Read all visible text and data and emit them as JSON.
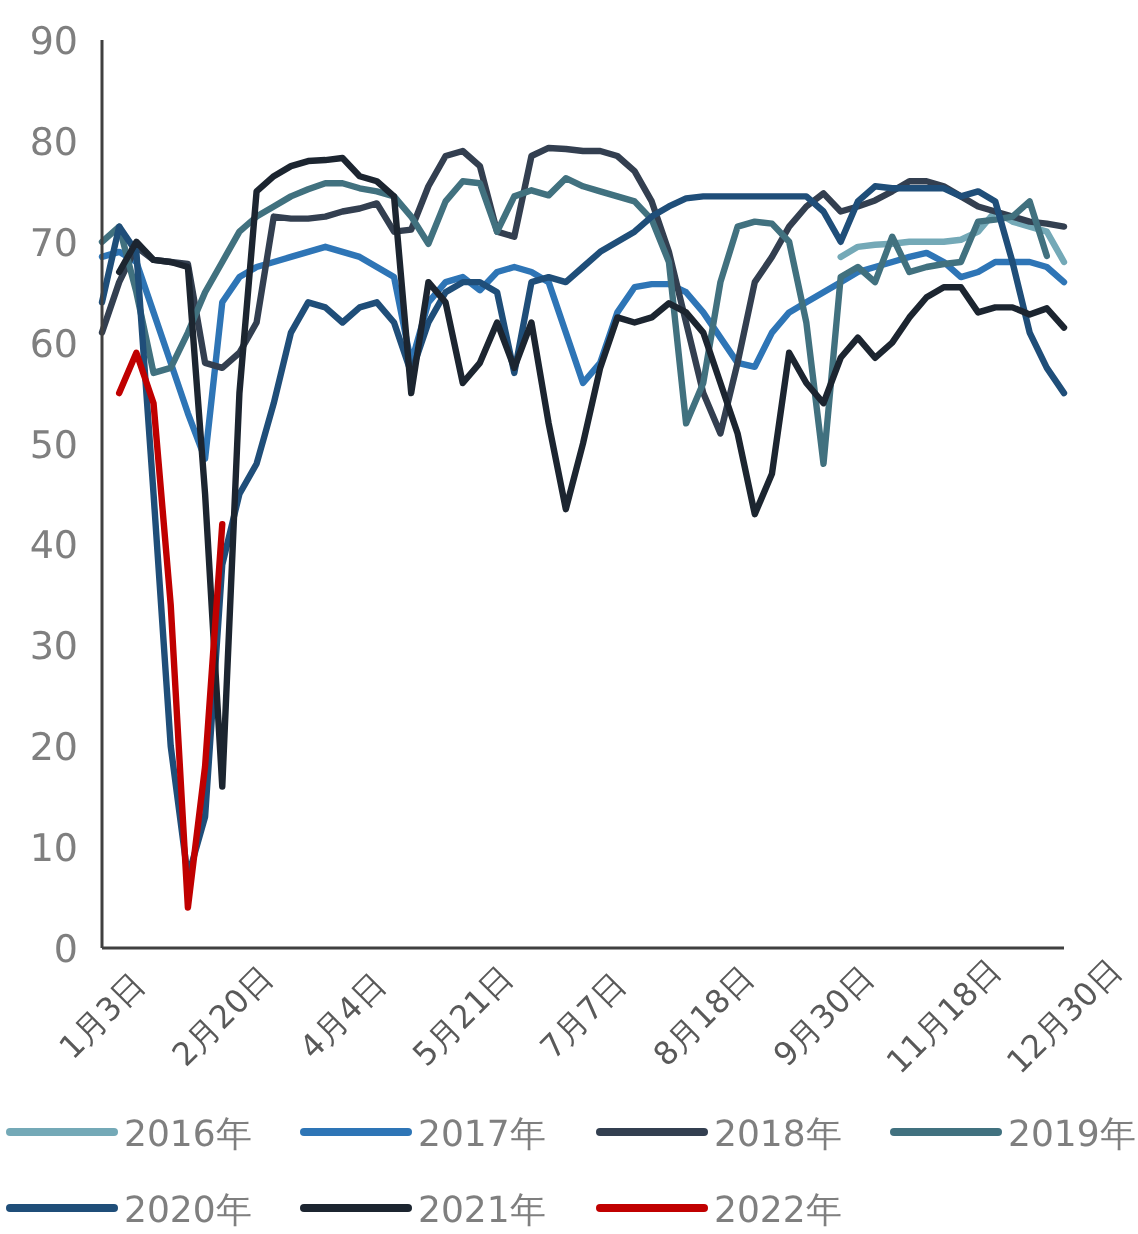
{
  "chart_data": {
    "type": "line",
    "categories": [
      "1月3日",
      null,
      null,
      null,
      null,
      null,
      null,
      "2月20日",
      null,
      null,
      null,
      null,
      null,
      null,
      "4月4日",
      null,
      null,
      null,
      null,
      null,
      null,
      "5月21日",
      null,
      null,
      null,
      null,
      null,
      null,
      "7月7日",
      null,
      null,
      null,
      null,
      null,
      null,
      "8月18日",
      null,
      null,
      null,
      null,
      null,
      null,
      "9月30日",
      null,
      null,
      null,
      null,
      null,
      null,
      "11月18日",
      null,
      null,
      null,
      null,
      null,
      null,
      "12月30日"
    ],
    "ylim": [
      0,
      90
    ],
    "yticks": [
      0,
      10,
      20,
      30,
      40,
      50,
      60,
      70,
      80,
      90
    ],
    "grid": false,
    "legend": "bottom",
    "series": [
      {
        "name": "2016年",
        "color": "#74a9b7",
        "values": [
          null,
          null,
          null,
          null,
          null,
          null,
          null,
          null,
          null,
          null,
          null,
          null,
          null,
          null,
          null,
          null,
          null,
          null,
          null,
          null,
          null,
          null,
          null,
          null,
          null,
          null,
          null,
          null,
          null,
          null,
          null,
          null,
          null,
          null,
          null,
          null,
          null,
          null,
          null,
          null,
          null,
          null,
          null,
          68.5,
          69.5,
          69.7,
          69.8,
          70,
          70,
          70,
          70.2,
          71,
          73,
          72,
          71.5,
          71,
          68
        ]
      },
      {
        "name": "2017年",
        "color": "#2e75b6",
        "values": [
          68.5,
          69,
          68,
          63,
          58,
          53,
          48.5,
          64,
          66.5,
          67.5,
          68,
          68.5,
          69,
          69.5,
          69,
          68.5,
          67.5,
          66.5,
          58,
          64,
          66,
          66.5,
          65.2,
          67,
          67.5,
          67,
          66,
          61,
          56,
          58,
          63,
          65.5,
          65.8,
          65.8,
          65,
          63,
          60.5,
          58,
          57.6,
          61,
          63,
          64,
          65,
          66,
          67,
          67.5,
          68,
          68.5,
          68.9,
          68,
          66.5,
          67,
          68,
          68,
          68,
          67.5,
          66
        ]
      },
      {
        "name": "2018年",
        "color": "#333f50",
        "values": [
          61,
          66,
          69.5,
          68.2,
          68,
          67.8,
          58,
          57.5,
          59,
          62,
          72.5,
          72.3,
          72.3,
          72.5,
          73,
          73.3,
          73.8,
          71,
          71.2,
          75.5,
          78.5,
          79,
          77.5,
          71,
          70.5,
          78.5,
          79.3,
          79.2,
          79,
          79,
          78.5,
          77,
          74,
          69,
          62,
          55,
          51,
          58,
          66,
          68.5,
          71.5,
          73.5,
          74.8,
          73,
          73.5,
          74.1,
          75,
          76,
          76,
          75.5,
          74.5,
          73.5,
          73,
          72.5,
          72,
          71.8,
          71.5
        ]
      },
      {
        "name": "2019年",
        "color": "#41717f",
        "values": [
          70,
          71.5,
          65,
          57,
          57.5,
          61,
          65,
          68,
          71,
          72.5,
          73.5,
          74.5,
          75.2,
          75.8,
          75.8,
          75.3,
          75,
          74.5,
          72.5,
          69.8,
          74,
          76,
          75.8,
          71,
          74.5,
          75.1,
          74.6,
          76.3,
          75.5,
          75,
          74.5,
          74,
          72.2,
          68,
          52,
          56,
          66,
          71.5,
          72,
          71.8,
          70,
          62,
          48,
          66.5,
          67.5,
          66,
          70.5,
          67,
          67.5,
          67.8,
          68,
          72,
          72.2,
          72.5,
          74,
          68.6,
          null
        ]
      },
      {
        "name": "2020年",
        "color": "#1f4e79",
        "values": [
          64,
          71.5,
          69,
          45,
          20,
          7,
          13,
          38,
          45,
          48,
          54,
          61,
          64,
          63.5,
          62,
          63.5,
          64,
          62,
          57,
          62,
          65,
          66,
          66,
          65,
          57,
          66,
          66.5,
          66,
          67.5,
          69,
          70,
          71,
          72.5,
          73.5,
          74.3,
          74.5,
          74.5,
          74.5,
          74.5,
          74.5,
          74.5,
          74.5,
          73,
          70,
          74,
          75.5,
          75.3,
          75.3,
          75.3,
          75.3,
          74.5,
          75,
          74,
          68,
          61,
          57.5,
          55
        ]
      },
      {
        "name": "2021年",
        "color": "#1c2530",
        "values": [
          null,
          67,
          70,
          68.2,
          68,
          67.5,
          45,
          16,
          55,
          75,
          76.5,
          77.5,
          78,
          78.1,
          78.3,
          76.5,
          76,
          74.5,
          55,
          66,
          64,
          56,
          58,
          62,
          57.5,
          62,
          52,
          43.5,
          50,
          57.5,
          62.5,
          62,
          62.5,
          63.9,
          63,
          61,
          56,
          51,
          43,
          47,
          59,
          56,
          54,
          58.5,
          60.5,
          58.5,
          60,
          62.5,
          64.5,
          65.5,
          65.5,
          63,
          63.5,
          63.5,
          62.8,
          63.4,
          61.5
        ]
      },
      {
        "name": "2022年",
        "color": "#c00000",
        "values": [
          null,
          55,
          59,
          54,
          34,
          4,
          18,
          42,
          null,
          null,
          null,
          null,
          null,
          null,
          null,
          null,
          null,
          null,
          null,
          null,
          null,
          null,
          null,
          null,
          null,
          null,
          null,
          null,
          null,
          null,
          null,
          null,
          null,
          null,
          null,
          null,
          null,
          null,
          null,
          null,
          null,
          null,
          null,
          null,
          null,
          null,
          null,
          null,
          null,
          null,
          null,
          null,
          null,
          null,
          null,
          null,
          null
        ]
      }
    ]
  }
}
